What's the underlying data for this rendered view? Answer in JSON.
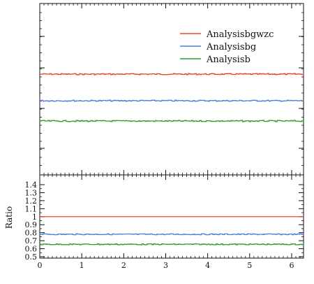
{
  "chart_data": [
    {
      "type": "line",
      "panel": "main",
      "ylabel": "",
      "xlim": [
        0,
        6.283
      ],
      "yticks_labeled": false,
      "legend_position": "top-right",
      "series": [
        {
          "name": "Analysisbgwzc",
          "color": "#e8462c",
          "level": 1.0
        },
        {
          "name": "Analysisbg",
          "color": "#4a7fe0",
          "level": 0.78
        },
        {
          "name": "Analysisb",
          "color": "#2ca02c",
          "level": 0.655
        }
      ],
      "xticks": [
        "0",
        "1",
        "2",
        "3",
        "4",
        "5",
        "6"
      ]
    },
    {
      "type": "line",
      "panel": "ratio",
      "ylabel": "Ratio",
      "xlim": [
        0,
        6.283
      ],
      "ylim": [
        0.5,
        1.45
      ],
      "yticks": [
        "0.5",
        "0.6",
        "0.7",
        "0.8",
        "0.9",
        "1",
        "1.1",
        "1.2",
        "1.3",
        "1.4"
      ],
      "xticks": [
        "0",
        "1",
        "2",
        "3",
        "4",
        "5",
        "6"
      ],
      "series": [
        {
          "name": "Analysisbgwzc",
          "color": "#e8462c",
          "values": [
            1.0,
            1.0
          ]
        },
        {
          "name": "Analysisbg",
          "color": "#4a7fe0",
          "values": [
            0.78,
            0.78
          ]
        },
        {
          "name": "Analysisb",
          "color": "#2ca02c",
          "values": [
            0.655,
            0.655
          ]
        }
      ]
    }
  ]
}
